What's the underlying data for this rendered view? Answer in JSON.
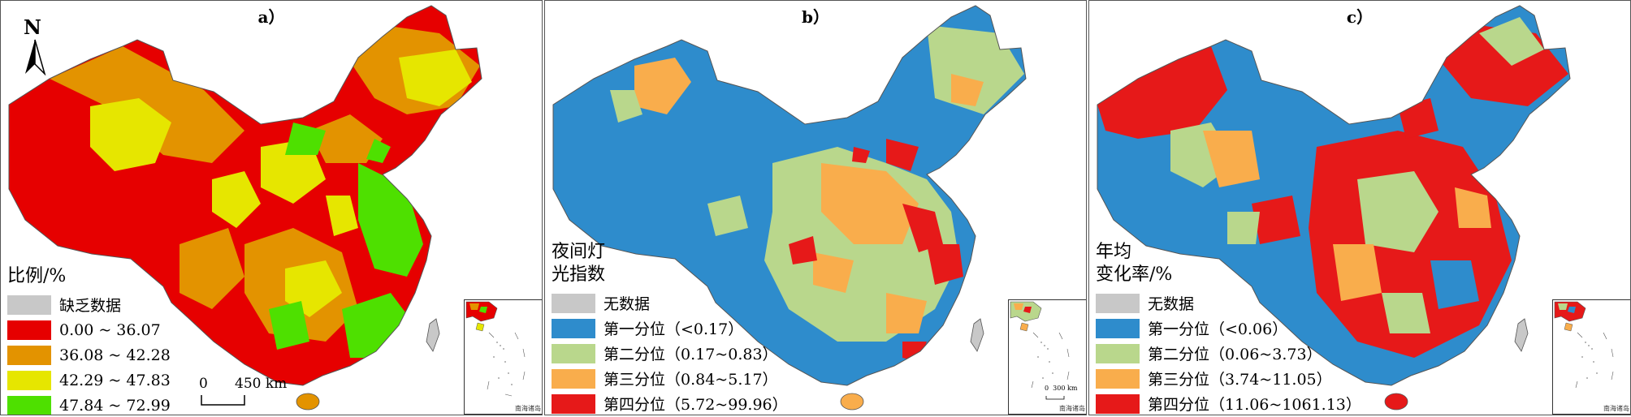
{
  "panels": [
    {
      "label": "a）",
      "legend_title": "比例/%",
      "legend_items": [
        {
          "label": "缺乏数据",
          "color": "#c8c8c8"
        },
        {
          "label": "0.00 ~ 36.07",
          "color": "#e60000"
        },
        {
          "label": "36.08 ~ 42.28",
          "color": "#e39300"
        },
        {
          "label": "42.29 ~ 47.83",
          "color": "#e6e600"
        },
        {
          "label": "47.84 ~ 72.99",
          "color": "#4ee000"
        }
      ],
      "north_label": "N",
      "scale_zero": "0",
      "scale_label": "450 km",
      "inset_caption": "南海诸岛"
    },
    {
      "label": "b）",
      "legend_title": "夜间灯\n光指数",
      "legend_items": [
        {
          "label": "无数据",
          "color": "#c8c8c8"
        },
        {
          "label": "第一分位（<0.17）",
          "color": "#2e8ccc"
        },
        {
          "label": "第二分位（0.17~0.83）",
          "color": "#b9d78c"
        },
        {
          "label": "第三分位（0.84~5.17）",
          "color": "#f9ad4c"
        },
        {
          "label": "第四分位（5.72~99.96）",
          "color": "#e61919"
        }
      ],
      "inset_scale": "0  300 km",
      "inset_caption": "南海诸岛"
    },
    {
      "label": "c）",
      "legend_title": "年均\n变化率/%",
      "legend_items": [
        {
          "label": "无数据",
          "color": "#c8c8c8"
        },
        {
          "label": "第一分位（<0.06）",
          "color": "#2e8ccc"
        },
        {
          "label": "第二分位（0.06~3.73）",
          "color": "#b9d78c"
        },
        {
          "label": "第三分位（3.74~11.05）",
          "color": "#f9ad4c"
        },
        {
          "label": "第四分位（11.06~1061.13）",
          "color": "#e61919"
        }
      ],
      "inset_caption": "南海诸岛"
    }
  ],
  "colors": {
    "land_outline": "#555555",
    "sea_island": "#b4c8dc"
  }
}
